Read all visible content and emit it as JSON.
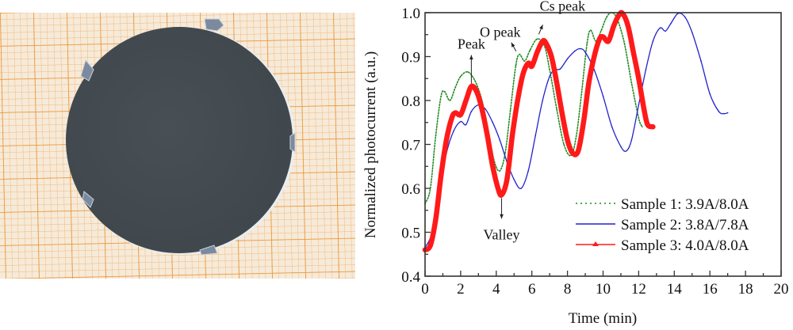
{
  "photo": {
    "description": "Circular dark gray wafer sample on orange graph paper",
    "background_color": "#f3e3cf",
    "grid_color": "#e8922e",
    "wafer_color": "#454d52"
  },
  "chart_data": {
    "type": "line",
    "title": "",
    "xlabel": "Time (min)",
    "ylabel": "Normalized photocurrent (a.u.)",
    "xlim": [
      0,
      20
    ],
    "ylim": [
      0.4,
      1.0
    ],
    "xticks": [
      "0",
      "2",
      "4",
      "6",
      "8",
      "10",
      "12",
      "14",
      "16",
      "18",
      "20"
    ],
    "xtick_values": [
      0,
      2,
      4,
      6,
      8,
      10,
      12,
      14,
      16,
      18,
      20
    ],
    "yticks": [
      "0.4",
      "0.5",
      "0.6",
      "0.7",
      "0.8",
      "0.9",
      "1.0"
    ],
    "ytick_values": [
      0.4,
      0.5,
      0.6,
      0.7,
      0.8,
      0.9,
      1.0
    ],
    "grid": false,
    "legend_position": "bottom-right",
    "series": [
      {
        "name": "Sample 1: 3.9A/8.0A",
        "color": "#1e8a1e",
        "style": "dotted",
        "x": [
          0,
          0.3,
          0.6,
          0.9,
          1.1,
          1.4,
          1.7,
          2.0,
          2.4,
          2.8,
          3.2,
          3.6,
          3.9,
          4.2,
          4.5,
          4.8,
          5.1,
          5.3,
          5.6,
          5.9,
          6.3,
          6.7,
          7.0,
          7.4,
          7.8,
          8.2,
          8.5,
          8.8,
          9.1,
          9.3,
          9.6,
          9.9,
          10.2,
          10.5,
          10.8,
          11.2,
          11.6,
          12.0,
          12.2
        ],
        "y": [
          0.565,
          0.6,
          0.72,
          0.81,
          0.82,
          0.8,
          0.83,
          0.855,
          0.865,
          0.845,
          0.8,
          0.72,
          0.66,
          0.64,
          0.68,
          0.78,
          0.88,
          0.905,
          0.89,
          0.915,
          0.94,
          0.925,
          0.87,
          0.78,
          0.7,
          0.675,
          0.72,
          0.82,
          0.93,
          0.96,
          0.935,
          0.96,
          0.99,
          1.0,
          0.985,
          0.93,
          0.84,
          0.76,
          0.74
        ]
      },
      {
        "name": "Sample 2: 3.8A/7.8A",
        "color": "#2222cc",
        "style": "solid",
        "x": [
          0,
          0.4,
          0.8,
          1.2,
          1.6,
          2.0,
          2.3,
          2.6,
          3.0,
          3.4,
          3.8,
          4.2,
          4.6,
          5.0,
          5.4,
          5.8,
          6.2,
          6.6,
          7.0,
          7.3,
          7.6,
          8.0,
          8.4,
          8.7,
          9.0,
          9.5,
          10.0,
          10.5,
          11.0,
          11.3,
          11.6,
          12.0,
          12.4,
          12.8,
          13.2,
          13.5,
          13.8,
          14.2,
          14.6,
          15.0,
          15.5,
          16.0,
          16.5,
          16.8,
          17.0
        ],
        "y": [
          0.465,
          0.5,
          0.6,
          0.68,
          0.73,
          0.752,
          0.745,
          0.775,
          0.79,
          0.78,
          0.75,
          0.71,
          0.66,
          0.62,
          0.6,
          0.64,
          0.72,
          0.8,
          0.855,
          0.87,
          0.872,
          0.895,
          0.912,
          0.918,
          0.91,
          0.87,
          0.81,
          0.74,
          0.695,
          0.685,
          0.71,
          0.79,
          0.87,
          0.935,
          0.965,
          0.958,
          0.975,
          0.998,
          0.99,
          0.955,
          0.89,
          0.815,
          0.775,
          0.77,
          0.772
        ]
      },
      {
        "name": "Sample 3: 4.0A/8.0A",
        "color": "#ff1a1a",
        "style": "solid-thick-triangle-markers",
        "x": [
          0,
          0.3,
          0.6,
          0.9,
          1.2,
          1.5,
          1.7,
          2.0,
          2.3,
          2.6,
          2.9,
          3.2,
          3.5,
          3.8,
          4.1,
          4.3,
          4.6,
          4.9,
          5.2,
          5.5,
          5.8,
          6.0,
          6.3,
          6.6,
          6.8,
          7.1,
          7.4,
          7.7,
          8.0,
          8.3,
          8.6,
          8.9,
          9.2,
          9.5,
          9.8,
          10.0,
          10.3,
          10.6,
          10.9,
          11.1,
          11.4,
          11.7,
          12.0,
          12.3,
          12.5,
          12.8
        ],
        "y": [
          0.46,
          0.47,
          0.53,
          0.63,
          0.71,
          0.76,
          0.772,
          0.768,
          0.8,
          0.832,
          0.82,
          0.78,
          0.72,
          0.65,
          0.6,
          0.585,
          0.62,
          0.72,
          0.8,
          0.86,
          0.885,
          0.878,
          0.91,
          0.935,
          0.93,
          0.9,
          0.84,
          0.77,
          0.71,
          0.68,
          0.685,
          0.75,
          0.84,
          0.9,
          0.94,
          0.945,
          0.935,
          0.97,
          0.995,
          0.998,
          0.97,
          0.91,
          0.85,
          0.78,
          0.745,
          0.74
        ]
      }
    ],
    "annotations": [
      {
        "text": "Peak",
        "x": 2.6,
        "y": 0.835,
        "arrow": "up"
      },
      {
        "text": "Valley",
        "x": 4.3,
        "y": 0.585,
        "arrow": "down"
      },
      {
        "text": "O peak",
        "x": 5.2,
        "y": 0.905,
        "arrow": "down-right"
      },
      {
        "text": "Cs peak",
        "x": 6.3,
        "y": 0.94,
        "arrow": "down-left"
      }
    ]
  }
}
